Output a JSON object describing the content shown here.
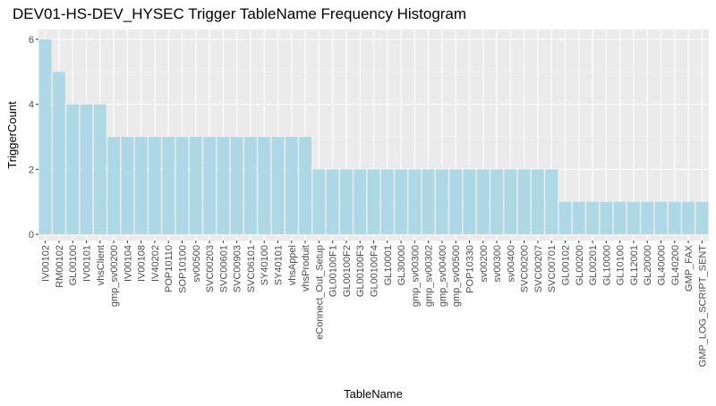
{
  "chart_data": {
    "type": "bar",
    "title": "DEV01-HS-DEV_HYSEC Trigger TableName Frequency Histogram",
    "xlabel": "TableName",
    "ylabel": "TriggerCount",
    "ylim": [
      0,
      6.3
    ],
    "yticks": [
      0,
      2,
      4,
      6
    ],
    "grid": true,
    "bar_color": "#add8e6",
    "panel_color": "#ebebeb",
    "categories": [
      "IV00102",
      "RM00102",
      "GL00100",
      "IV00101",
      "vhsClient",
      "gmp_sv00200",
      "IV00104",
      "IV00108",
      "IV40202",
      "POP10110",
      "SOP10100",
      "sv00500",
      "SVC00203",
      "SVC00601",
      "SVC00903",
      "SVC06101",
      "SY40100",
      "SY40101",
      "vhsAppel",
      "vhsProduit",
      "eConnect_Out_Setup",
      "GL00100F1",
      "GL00100F2",
      "GL00100F3",
      "GL00100F4",
      "GL10001",
      "GL30000",
      "gmp_sv00300",
      "gmp_sv00302",
      "gmp_sv00400",
      "gmp_sv00500",
      "POP10330",
      "sv00200",
      "sv00300",
      "sv00400",
      "SVC00200",
      "SVC00207",
      "SVC00701",
      "GL00102",
      "GL00200",
      "GL00201",
      "GL10000",
      "GL10100",
      "GL12001",
      "GL20000",
      "GL40000",
      "GL40200",
      "GMP_FAX",
      "GMP_LOG_SCRIPT_SENT"
    ],
    "values": [
      6,
      5,
      4,
      4,
      4,
      3,
      3,
      3,
      3,
      3,
      3,
      3,
      3,
      3,
      3,
      3,
      3,
      3,
      3,
      3,
      2,
      2,
      2,
      2,
      2,
      2,
      2,
      2,
      2,
      2,
      2,
      2,
      2,
      2,
      2,
      2,
      2,
      2,
      1,
      1,
      1,
      1,
      1,
      1,
      1,
      1,
      1,
      1,
      1
    ]
  }
}
